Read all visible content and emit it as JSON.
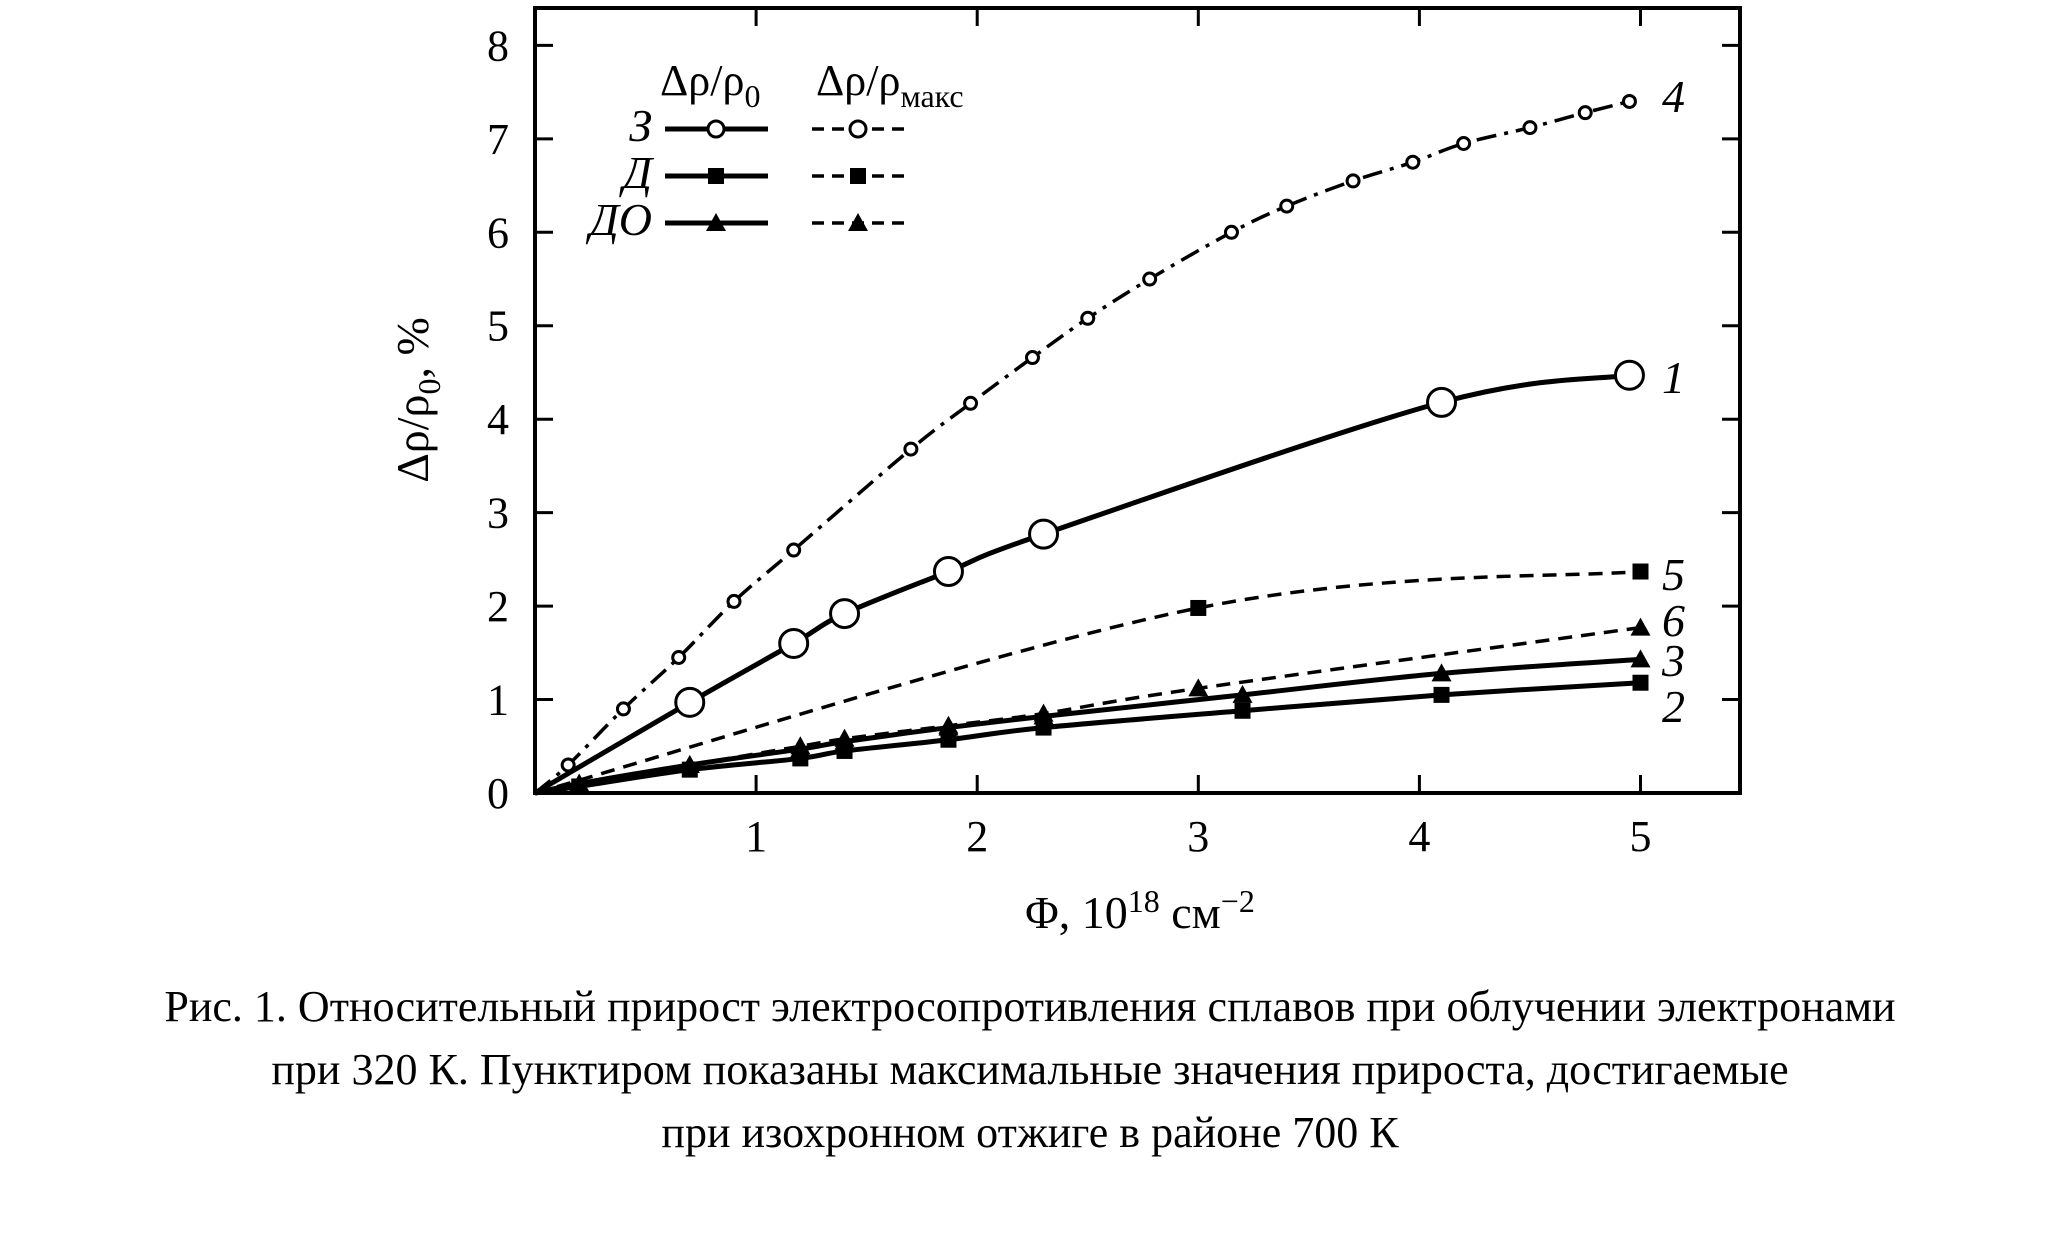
{
  "chart_data": {
    "type": "line",
    "xlabel": "Φ, 10",
    "xlabel_sup": "18",
    "xlabel_unit": " см",
    "xlabel_unit_sup": "−2",
    "ylabel": "Δρ/ρ",
    "ylabel_sub": "0",
    "ylabel_suffix": ", %",
    "xlim": [
      0,
      5.45
    ],
    "ylim": [
      0,
      8.4
    ],
    "xticks": [
      1,
      2,
      3,
      4,
      5
    ],
    "yticks": [
      0,
      1,
      2,
      3,
      4,
      5,
      6,
      7,
      8
    ],
    "grid": false,
    "legend": {
      "placement": "top-left",
      "col1_head": "Δρ/ρ",
      "col1_head_sub": "0",
      "col2_head": "Δρ/ρ",
      "col2_head_sub": "макс",
      "rows": [
        {
          "label": "З",
          "marker": "circle"
        },
        {
          "label": "Д",
          "marker": "square"
        },
        {
          "label": "ДО",
          "marker": "triangle"
        }
      ]
    },
    "series": [
      {
        "label": "1",
        "marker": "circle",
        "style": "solid",
        "x": [
          0,
          0.7,
          1.17,
          1.4,
          1.87,
          2.3,
          4.1,
          4.95
        ],
        "y": [
          0,
          0.97,
          1.6,
          1.92,
          2.37,
          2.77,
          4.18,
          4.47
        ]
      },
      {
        "label": "2",
        "marker": "square",
        "style": "solid",
        "x": [
          0,
          0.2,
          0.7,
          1.2,
          1.4,
          1.87,
          2.3,
          3.2,
          4.1,
          5.0
        ],
        "y": [
          0,
          0.07,
          0.25,
          0.37,
          0.45,
          0.57,
          0.7,
          0.88,
          1.05,
          1.18
        ]
      },
      {
        "label": "3",
        "marker": "triangle",
        "style": "solid",
        "x": [
          0,
          0.2,
          0.7,
          1.2,
          1.4,
          1.87,
          2.3,
          3.2,
          4.1,
          5.0
        ],
        "y": [
          0,
          0.1,
          0.3,
          0.47,
          0.55,
          0.7,
          0.82,
          1.05,
          1.28,
          1.43
        ]
      },
      {
        "label": "4",
        "marker": "circle",
        "style": "dashdot",
        "x": [
          0,
          0.15,
          0.4,
          0.65,
          0.9,
          1.17,
          1.7,
          1.97,
          2.25,
          2.5,
          2.78,
          3.15,
          3.4,
          3.7,
          3.97,
          4.2,
          4.5,
          4.75,
          4.95
        ],
        "y": [
          0,
          0.3,
          0.9,
          1.45,
          2.05,
          2.6,
          3.68,
          4.17,
          4.66,
          5.08,
          5.5,
          6.0,
          6.28,
          6.55,
          6.75,
          6.95,
          7.12,
          7.28,
          7.4
        ]
      },
      {
        "label": "5",
        "marker": "square",
        "style": "dashed",
        "x": [
          0,
          3.0,
          5.0
        ],
        "y": [
          0,
          1.98,
          2.37
        ]
      },
      {
        "label": "6",
        "marker": "triangle",
        "style": "dashed",
        "x": [
          0,
          0.2,
          0.7,
          1.2,
          1.4,
          1.87,
          2.3,
          3.0,
          5.0
        ],
        "y": [
          0,
          0.1,
          0.3,
          0.5,
          0.58,
          0.72,
          0.85,
          1.12,
          1.77
        ]
      }
    ]
  },
  "caption": {
    "line1": "Рис. 1. Относительный прирост электросопротивления сплавов при облучении электронами",
    "line2": "при 320 К. Пунктиром показаны максимальные значения прироста, достигаемые",
    "line3": "при изохронном отжиге в районе 700 К"
  }
}
